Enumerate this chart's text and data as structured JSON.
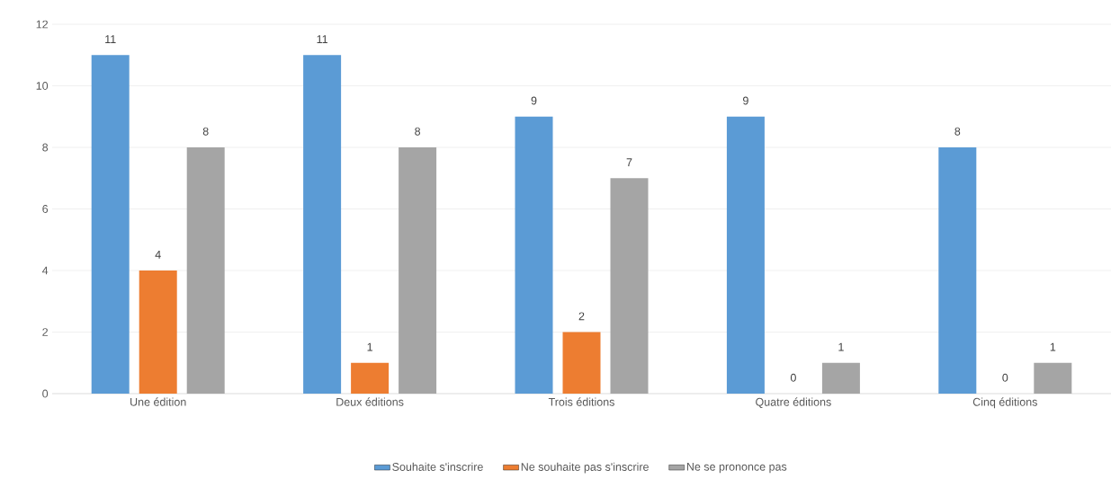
{
  "chart_data": {
    "type": "bar",
    "categories": [
      "Une édition",
      "Deux éditions",
      "Trois éditions",
      "Quatre éditions",
      "Cinq éditions"
    ],
    "series": [
      {
        "name": "Souhaite s'inscrire",
        "color": "#5b9bd5",
        "values": [
          11,
          11,
          9,
          9,
          8
        ]
      },
      {
        "name": "Ne souhaite pas s'inscrire",
        "color": "#ed7d31",
        "values": [
          4,
          1,
          2,
          0,
          0
        ]
      },
      {
        "name": "Ne se prononce pas",
        "color": "#a5a5a5",
        "values": [
          8,
          8,
          7,
          1,
          1
        ]
      }
    ],
    "ylim": [
      0,
      12
    ],
    "yticks": [
      0,
      2,
      4,
      6,
      8,
      10,
      12
    ],
    "grid": "y",
    "legend": "bottom",
    "data_labels": true
  }
}
